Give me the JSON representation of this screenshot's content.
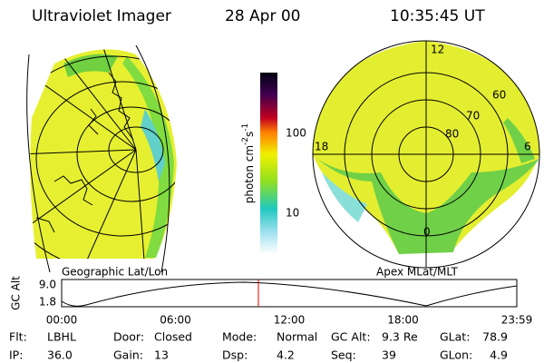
{
  "header": {
    "instrument": "Ultraviolet Imager",
    "date": "28 Apr 00",
    "time": "10:35:45 UT"
  },
  "left_panel": {
    "label": "Geographic Lat/Lon"
  },
  "right_panel": {
    "label": "Apex MLat/MLT",
    "rings": [
      "60",
      "70",
      "80"
    ],
    "mlt": [
      "12",
      "18",
      "6",
      "0"
    ]
  },
  "colorbar": {
    "unit_parts": [
      "photon cm",
      "-2",
      "s",
      "-1"
    ],
    "ticks": [
      "100",
      "10"
    ]
  },
  "altitude_plot": {
    "ylabel": "GC Alt",
    "yticks": [
      "9.0",
      "1.8"
    ],
    "xticks": [
      "00:00",
      "06:00",
      "12:00",
      "18:00",
      "23:59"
    ]
  },
  "footer": {
    "rows": [
      [
        {
          "label": "Flt:",
          "value": "LBHL"
        },
        {
          "label": "Door:",
          "value": "Closed"
        },
        {
          "label": "Mode:",
          "value": "Normal"
        },
        {
          "label": "GC Alt:",
          "value": "9.3 Re"
        },
        {
          "label": "GLat:",
          "value": "78.9"
        }
      ],
      [
        {
          "label": "IP:",
          "value": "36.0"
        },
        {
          "label": "Gain:",
          "value": "13"
        },
        {
          "label": "Dsp:",
          "value": "4.2"
        },
        {
          "label": "Seq:",
          "value": "39"
        },
        {
          "label": "GLon:",
          "value": "4.9"
        }
      ]
    ]
  }
}
